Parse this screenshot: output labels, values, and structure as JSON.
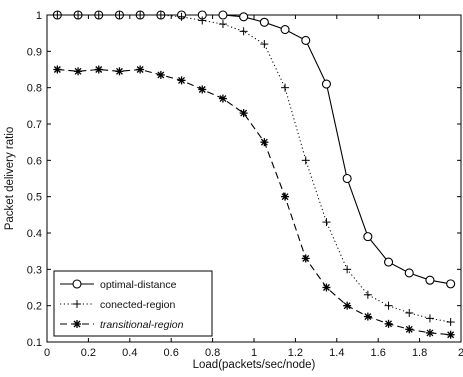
{
  "chart_data": {
    "type": "line",
    "xlabel": "Load(packets/sec/node)",
    "ylabel": "Packet delivery ratio",
    "xlim": [
      0,
      2
    ],
    "ylim": [
      0.1,
      1
    ],
    "xticks": [
      "0",
      "0.2",
      "0.4",
      "0.6",
      "0.8",
      "1",
      "1.2",
      "1.4",
      "1.6",
      "1.8",
      "2"
    ],
    "yticks": [
      "0.1",
      "0.2",
      "0.3",
      "0.4",
      "0.5",
      "0.6",
      "0.7",
      "0.8",
      "0.9",
      "1"
    ],
    "grid": false,
    "legend_position": "bottom-left",
    "series": [
      {
        "name": "optimal-distance",
        "line": "solid",
        "marker": "circle",
        "x": [
          0.05,
          0.15,
          0.25,
          0.35,
          0.45,
          0.55,
          0.65,
          0.75,
          0.85,
          0.95,
          1.05,
          1.15,
          1.25,
          1.35,
          1.45,
          1.55,
          1.65,
          1.75,
          1.85,
          1.95
        ],
        "y": [
          1.0,
          1.0,
          1.0,
          1.0,
          1.0,
          1.0,
          1.0,
          1.0,
          1.0,
          0.995,
          0.98,
          0.96,
          0.93,
          0.81,
          0.55,
          0.39,
          0.32,
          0.29,
          0.27,
          0.26
        ]
      },
      {
        "name": "conected-region",
        "line": "dotted",
        "marker": "plus",
        "x": [
          0.05,
          0.15,
          0.25,
          0.35,
          0.45,
          0.55,
          0.65,
          0.75,
          0.85,
          0.95,
          1.05,
          1.15,
          1.25,
          1.35,
          1.45,
          1.55,
          1.65,
          1.75,
          1.85,
          1.95
        ],
        "y": [
          1.0,
          1.0,
          1.0,
          1.0,
          1.0,
          1.0,
          0.995,
          0.985,
          0.975,
          0.955,
          0.92,
          0.8,
          0.6,
          0.43,
          0.3,
          0.23,
          0.2,
          0.18,
          0.165,
          0.155
        ]
      },
      {
        "name": "transitional-region",
        "line": "dashed",
        "marker": "star",
        "x": [
          0.05,
          0.15,
          0.25,
          0.35,
          0.45,
          0.55,
          0.65,
          0.75,
          0.85,
          0.95,
          1.05,
          1.15,
          1.25,
          1.35,
          1.45,
          1.55,
          1.65,
          1.75,
          1.85,
          1.95
        ],
        "y": [
          0.85,
          0.845,
          0.85,
          0.845,
          0.85,
          0.835,
          0.82,
          0.795,
          0.77,
          0.73,
          0.65,
          0.5,
          0.33,
          0.25,
          0.2,
          0.17,
          0.15,
          0.135,
          0.125,
          0.12
        ]
      }
    ]
  },
  "colors": {
    "line": "#000000",
    "background": "#ffffff"
  }
}
